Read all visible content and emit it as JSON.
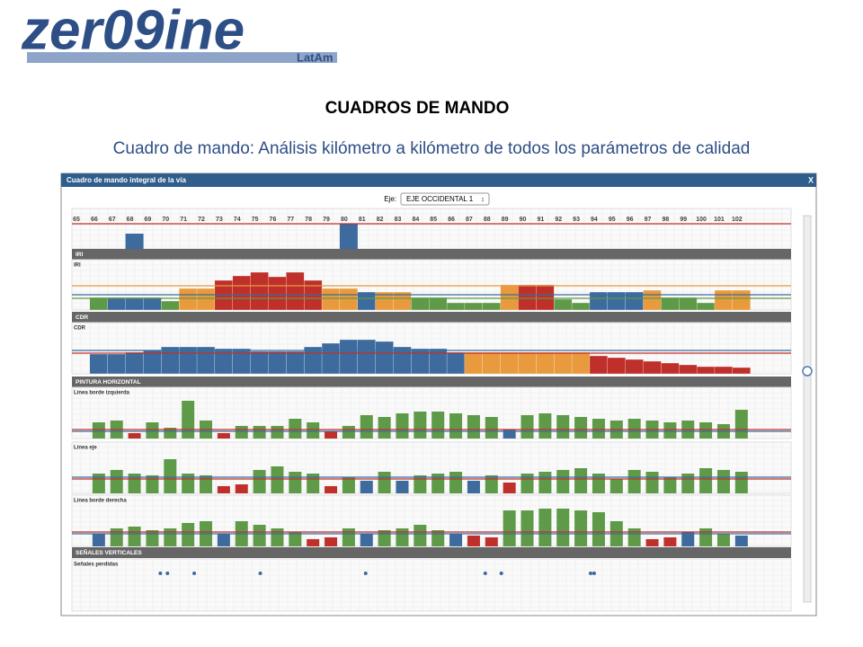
{
  "header": {
    "logo": "zer09ine",
    "logo_sub": "LatAm",
    "title": "CUADROS DE MANDO",
    "subtitle": "Cuadro de mando:  Análisis kilómetro a kilómetro de todos los parámetros de calidad"
  },
  "window": {
    "title": "Cuadro de mando integral de la vía",
    "close": "X",
    "axis_label": "Eje:",
    "axis_value": "EJE OCCIDENTAL 1"
  },
  "km_panel": {
    "kms": [
      65,
      66,
      67,
      68,
      69,
      70,
      71,
      72,
      73,
      74,
      75,
      76,
      77,
      78,
      79,
      80,
      81,
      82,
      83,
      84,
      85,
      86,
      87,
      88,
      89,
      90,
      91,
      92,
      93,
      94,
      95,
      96,
      97,
      98,
      99,
      100,
      101,
      102
    ],
    "bar_kms": [
      68,
      80
    ],
    "values": [
      17,
      28
    ],
    "color": "#3d6b9e",
    "ylim": [
      0,
      45
    ],
    "thresholds": [
      {
        "value": 28,
        "color": "#c0302a"
      }
    ]
  },
  "sections": [
    {
      "header": "IRI",
      "charts": [
        {
          "label": "IRI",
          "ylim": [
            0,
            56
          ],
          "values": [
            14,
            14,
            14,
            14,
            10,
            24,
            24,
            33,
            38,
            42,
            37,
            42,
            33,
            24,
            24,
            20,
            20,
            20,
            14,
            14,
            8,
            8,
            8,
            28,
            28,
            28,
            12,
            8,
            20,
            20,
            20,
            22,
            14,
            14,
            8,
            22,
            22
          ],
          "colors": [
            "#5e9a48",
            "#3d6b9e",
            "#3d6b9e",
            "#3d6b9e",
            "#5e9a48",
            "#e89a3c",
            "#e89a3c",
            "#c0302a",
            "#c0302a",
            "#c0302a",
            "#c0302a",
            "#c0302a",
            "#c0302a",
            "#e89a3c",
            "#e89a3c",
            "#3d6b9e",
            "#e89a3c",
            "#e89a3c",
            "#5e9a48",
            "#5e9a48",
            "#5e9a48",
            "#5e9a48",
            "#5e9a48",
            "#e89a3c",
            "#c0302a",
            "#c0302a",
            "#5e9a48",
            "#5e9a48",
            "#3d6b9e",
            "#3d6b9e",
            "#3d6b9e",
            "#e89a3c",
            "#5e9a48",
            "#5e9a48",
            "#5e9a48",
            "#e89a3c",
            "#e89a3c"
          ],
          "thresholds": [
            {
              "value": 27,
              "color": "#e89a3c"
            },
            {
              "value": 17,
              "color": "#3d6b9e"
            },
            {
              "value": 13,
              "color": "#5e9a48"
            }
          ]
        }
      ]
    },
    {
      "header": "CDR",
      "charts": [
        {
          "label": "CDR",
          "ylim": [
            0,
            57
          ],
          "values": [
            22,
            22,
            24,
            26,
            30,
            30,
            30,
            28,
            28,
            25,
            25,
            25,
            30,
            34,
            38,
            38,
            36,
            30,
            28,
            28,
            24,
            24,
            24,
            24,
            24,
            24,
            24,
            24,
            20,
            18,
            16,
            14,
            12,
            10,
            8,
            8,
            7
          ],
          "colors": [
            "#3d6b9e",
            "#3d6b9e",
            "#3d6b9e",
            "#3d6b9e",
            "#3d6b9e",
            "#3d6b9e",
            "#3d6b9e",
            "#3d6b9e",
            "#3d6b9e",
            "#3d6b9e",
            "#3d6b9e",
            "#3d6b9e",
            "#3d6b9e",
            "#3d6b9e",
            "#3d6b9e",
            "#3d6b9e",
            "#3d6b9e",
            "#3d6b9e",
            "#3d6b9e",
            "#3d6b9e",
            "#3d6b9e",
            "#e89a3c",
            "#e89a3c",
            "#e89a3c",
            "#e89a3c",
            "#e89a3c",
            "#e89a3c",
            "#e89a3c",
            "#c0302a",
            "#c0302a",
            "#c0302a",
            "#c0302a",
            "#c0302a",
            "#c0302a",
            "#c0302a",
            "#c0302a",
            "#c0302a"
          ],
          "thresholds": [
            {
              "value": 26,
              "color": "#3d6b9e"
            },
            {
              "value": 23,
              "color": "#c0302a"
            }
          ]
        }
      ]
    },
    {
      "header": "PINTURA HORIZONTAL",
      "charts": [
        {
          "label": "Línea borde izquierda",
          "ylim": [
            0,
            57
          ],
          "values": [
            18,
            20,
            6,
            18,
            12,
            42,
            20,
            6,
            14,
            14,
            14,
            22,
            18,
            8,
            14,
            26,
            24,
            28,
            30,
            30,
            28,
            26,
            24,
            10,
            26,
            28,
            26,
            24,
            22,
            20,
            22,
            20,
            18,
            20,
            18,
            16,
            32
          ],
          "colors": [
            "#5e9a48",
            "#5e9a48",
            "#c0302a",
            "#5e9a48",
            "#5e9a48",
            "#5e9a48",
            "#5e9a48",
            "#c0302a",
            "#5e9a48",
            "#5e9a48",
            "#5e9a48",
            "#5e9a48",
            "#5e9a48",
            "#c0302a",
            "#5e9a48",
            "#5e9a48",
            "#5e9a48",
            "#5e9a48",
            "#5e9a48",
            "#5e9a48",
            "#5e9a48",
            "#5e9a48",
            "#5e9a48",
            "#3d6b9e",
            "#5e9a48",
            "#5e9a48",
            "#5e9a48",
            "#5e9a48",
            "#5e9a48",
            "#5e9a48",
            "#5e9a48",
            "#5e9a48",
            "#5e9a48",
            "#5e9a48",
            "#5e9a48",
            "#5e9a48",
            "#5e9a48"
          ],
          "thresholds": [
            {
              "value": 10,
              "color": "#c0302a"
            },
            {
              "value": 8,
              "color": "#3d6b9e"
            }
          ]
        },
        {
          "label": "Línea eje",
          "ylim": [
            0,
            57
          ],
          "values": [
            22,
            26,
            22,
            20,
            38,
            22,
            20,
            8,
            10,
            26,
            30,
            24,
            22,
            8,
            18,
            14,
            24,
            14,
            20,
            22,
            24,
            14,
            20,
            12,
            22,
            24,
            26,
            28,
            22,
            16,
            26,
            24,
            18,
            22,
            28,
            26,
            24
          ],
          "colors": [
            "#5e9a48",
            "#5e9a48",
            "#5e9a48",
            "#5e9a48",
            "#5e9a48",
            "#5e9a48",
            "#5e9a48",
            "#c0302a",
            "#c0302a",
            "#5e9a48",
            "#5e9a48",
            "#5e9a48",
            "#5e9a48",
            "#c0302a",
            "#5e9a48",
            "#3d6b9e",
            "#5e9a48",
            "#3d6b9e",
            "#5e9a48",
            "#5e9a48",
            "#5e9a48",
            "#3d6b9e",
            "#5e9a48",
            "#c0302a",
            "#5e9a48",
            "#5e9a48",
            "#5e9a48",
            "#5e9a48",
            "#5e9a48",
            "#5e9a48",
            "#5e9a48",
            "#5e9a48",
            "#5e9a48",
            "#5e9a48",
            "#5e9a48",
            "#5e9a48",
            "#5e9a48"
          ],
          "thresholds": [
            {
              "value": 18,
              "color": "#3d6b9e"
            },
            {
              "value": 16,
              "color": "#c0302a"
            }
          ]
        },
        {
          "label": "Línea borde derecha",
          "ylim": [
            0,
            57
          ],
          "values": [
            14,
            20,
            22,
            18,
            20,
            26,
            28,
            14,
            28,
            24,
            20,
            16,
            8,
            10,
            20,
            14,
            18,
            20,
            24,
            18,
            14,
            12,
            10,
            40,
            40,
            42,
            42,
            40,
            38,
            28,
            20,
            8,
            10,
            16,
            20,
            14,
            12
          ],
          "colors": [
            "#3d6b9e",
            "#5e9a48",
            "#5e9a48",
            "#5e9a48",
            "#5e9a48",
            "#5e9a48",
            "#5e9a48",
            "#3d6b9e",
            "#5e9a48",
            "#5e9a48",
            "#5e9a48",
            "#5e9a48",
            "#c0302a",
            "#c0302a",
            "#5e9a48",
            "#3d6b9e",
            "#5e9a48",
            "#5e9a48",
            "#5e9a48",
            "#5e9a48",
            "#3d6b9e",
            "#c0302a",
            "#c0302a",
            "#5e9a48",
            "#5e9a48",
            "#5e9a48",
            "#5e9a48",
            "#5e9a48",
            "#5e9a48",
            "#5e9a48",
            "#5e9a48",
            "#c0302a",
            "#c0302a",
            "#3d6b9e",
            "#5e9a48",
            "#5e9a48",
            "#3d6b9e"
          ],
          "thresholds": [
            {
              "value": 16,
              "color": "#c0302a"
            },
            {
              "value": 14,
              "color": "#3d6b9e"
            }
          ]
        }
      ]
    },
    {
      "header": "SEÑALES VERTICALES",
      "charts": [
        {
          "label": "Señales perdidas",
          "points": [
            69.7,
            70.1,
            71.6,
            75.3,
            81.2,
            87.9,
            88.8,
            93.8,
            94.0
          ],
          "color": "#3d6b9e"
        }
      ]
    }
  ]
}
